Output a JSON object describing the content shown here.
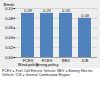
{
  "chart_data": {
    "type": "bar",
    "y_label": "$/mile",
    "caption": "FCEV = Fuel Cell Electric Vehicle; BEV = Battery Electric Vehicle; ICE = Internal Combustion Engine",
    "categories": [
      "FCEV\nWind policy",
      "FCEV\nStrong policy",
      "BEV",
      "ICE"
    ],
    "values": [
      0.09,
      0.09,
      0.09,
      0.08
    ],
    "color": "#4f81bd",
    "ylim": [
      0,
      0.1
    ],
    "yticks": [
      {
        "value": 0,
        "label": "0.00"
      },
      {
        "value": 0.02,
        "label": "0.02"
      },
      {
        "value": 0.04,
        "label": "0.04"
      },
      {
        "value": 0.06,
        "label": "0.06"
      },
      {
        "value": 0.08,
        "label": "0.08"
      },
      {
        "value": 0.1,
        "label": "0.10"
      }
    ],
    "grid": true,
    "data_labels": true
  }
}
